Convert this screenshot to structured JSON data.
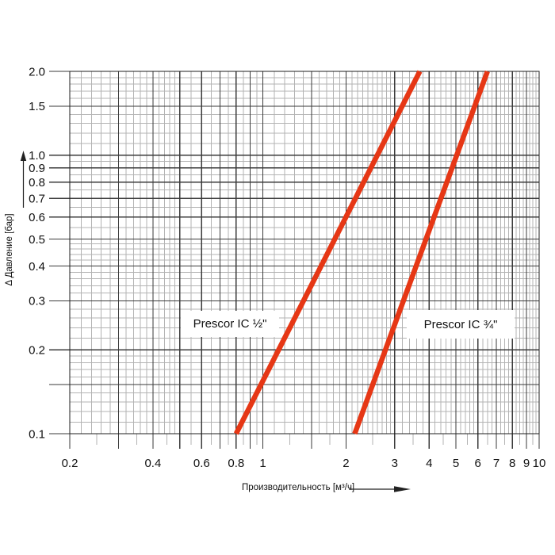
{
  "chart_data": {
    "type": "line",
    "scale": "log-log",
    "title": "",
    "x_axis": {
      "title": "Производительность [м³/ч]",
      "min": 0.2,
      "max": 10,
      "ticks": [
        {
          "v": 0.2,
          "label": "0.2"
        },
        {
          "v": 0.4,
          "label": "0.4"
        },
        {
          "v": 0.6,
          "label": "0.6"
        },
        {
          "v": 0.8,
          "label": "0.8"
        },
        {
          "v": 1,
          "label": "1"
        },
        {
          "v": 2,
          "label": "2"
        },
        {
          "v": 3,
          "label": "3"
        },
        {
          "v": 4,
          "label": "4"
        },
        {
          "v": 5,
          "label": "5"
        },
        {
          "v": 6,
          "label": "6"
        },
        {
          "v": 7,
          "label": "7"
        },
        {
          "v": 8,
          "label": "8"
        },
        {
          "v": 9,
          "label": "9"
        },
        {
          "v": 10,
          "label": "10"
        }
      ],
      "unlabeled_major_lines": [
        0.3,
        0.5,
        0.7,
        0.9,
        1.5
      ],
      "minor_ranges": [
        [
          0.22,
          0.48,
          0.02
        ],
        [
          0.55,
          0.95,
          0.05
        ],
        [
          1.1,
          2.9,
          0.1
        ],
        [
          3.2,
          5.8,
          0.2
        ],
        [
          6.25,
          9.75,
          0.25
        ]
      ],
      "half_tick_ranges": [
        [
          0.25,
          0.95,
          0.1
        ],
        [
          1.25,
          1.75,
          0.5
        ],
        [
          2.5,
          9.5,
          1
        ]
      ]
    },
    "y_axis": {
      "title": "Δ Давление [бар]",
      "min": 0.1,
      "max": 2.0,
      "ticks": [
        {
          "v": 2.0,
          "label": "2.0"
        },
        {
          "v": 1.5,
          "label": "1.5"
        },
        {
          "v": 1.0,
          "label": "1.0"
        },
        {
          "v": 0.9,
          "label": "0.9"
        },
        {
          "v": 0.8,
          "label": "0.8"
        },
        {
          "v": 0.7,
          "label": "0.7"
        },
        {
          "v": 0.6,
          "label": "0.6"
        },
        {
          "v": 0.5,
          "label": "0.5"
        },
        {
          "v": 0.4,
          "label": "0.4"
        },
        {
          "v": 0.3,
          "label": "0.3"
        },
        {
          "v": 0.2,
          "label": "0.2"
        },
        {
          "v": 0.1,
          "label": "0.1"
        }
      ],
      "unlabeled_major_lines": [
        0.15
      ],
      "minor_ranges": [
        [
          0.11,
          0.19,
          0.01
        ],
        [
          0.22,
          0.48,
          0.02
        ],
        [
          0.55,
          0.95,
          0.05
        ],
        [
          1.1,
          1.9,
          0.1
        ]
      ]
    },
    "grid": "on",
    "series": [
      {
        "name": "Prescor IC ½\"",
        "points": [
          [
            0.8,
            0.1
          ],
          [
            3.7,
            2.0
          ]
        ]
      },
      {
        "name": "Prescor IC ¾\"",
        "points": [
          [
            2.15,
            0.1
          ],
          [
            6.5,
            2.0
          ]
        ]
      }
    ],
    "colors": {
      "series": "#e63715",
      "grid_major": "#3a3a3a",
      "grid_minor": "#b3b3b3",
      "frame": "#1f1f1f",
      "text": "#111111"
    }
  }
}
